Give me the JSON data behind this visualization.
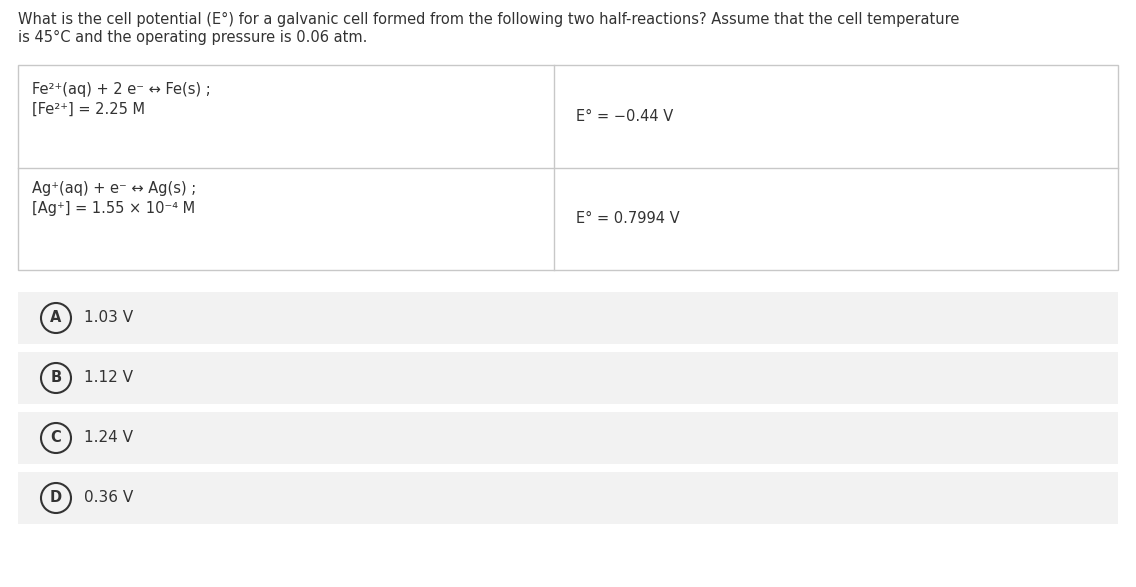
{
  "title_line1": "What is the cell potential (E°) for a galvanic cell formed from the following two half-reactions? Assume that the cell temperature",
  "title_line2": "is 45°C and the operating pressure is 0.06 atm.",
  "row1_left_line1": "Fe²⁺(aq) + 2 e⁻ ↔ Fe(s) ;",
  "row1_left_line2": "[Fe²⁺] = 2.25 M",
  "row1_right": "E° = −0.44 V",
  "row2_left_line1": "Ag⁺(aq) + e⁻ ↔ Ag(s) ;",
  "row2_left_line2": "[Ag⁺] = 1.55 × 10⁻⁴ M",
  "row2_right": "E° = 0.7994 V",
  "options": [
    {
      "label": "A",
      "text": "1.03 V"
    },
    {
      "label": "B",
      "text": "1.12 V"
    },
    {
      "label": "C",
      "text": "1.24 V"
    },
    {
      "label": "D",
      "text": "0.36 V"
    }
  ],
  "bg_color": "#ffffff",
  "table_bg": "#ffffff",
  "option_bg": "#f2f2f2",
  "border_color": "#c8c8c8",
  "text_color": "#333333",
  "font_size_title": 10.5,
  "font_size_table": 10.5,
  "font_size_options": 11.0
}
